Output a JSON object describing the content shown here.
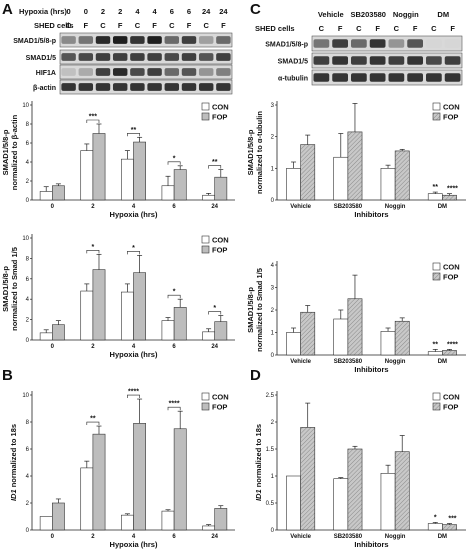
{
  "panel_labels": [
    "A",
    "B",
    "C",
    "D"
  ],
  "blot_left": {
    "header_label": "Hypoxia (hrs)",
    "header_values": [
      "0",
      "0",
      "2",
      "2",
      "4",
      "4",
      "6",
      "6",
      "24",
      "24"
    ],
    "cells_label": "SHED cells",
    "cells_values": [
      "C",
      "F",
      "C",
      "F",
      "C",
      "F",
      "C",
      "F",
      "C",
      "F"
    ],
    "rows": [
      "SMAD1/5/8-p",
      "SMAD1/5",
      "HIF1A",
      "β-actin"
    ]
  },
  "blot_right": {
    "header_values": [
      "Vehicle",
      "SB203580",
      "Noggin",
      "DM"
    ],
    "cells_label": "SHED cells",
    "cells_values": [
      "C",
      "F",
      "C",
      "F",
      "C",
      "F",
      "C",
      "F"
    ],
    "rows": [
      "SMAD1/5/8-p",
      "SMAD1/5",
      "α-tubulin"
    ]
  },
  "legend": {
    "con": "CON",
    "fop": "FOP"
  },
  "colors": {
    "con": "#ffffff",
    "fop": "#bdbdbd",
    "stroke": "#333333"
  },
  "chart_data": [
    {
      "id": "A1",
      "type": "bar",
      "categories": [
        "0",
        "2",
        "4",
        "6",
        "24"
      ],
      "xlabel": "Hypoxia (hrs)",
      "ylabel": [
        "SMAD1/5/8-p",
        "normalized to β-actin"
      ],
      "ylim": [
        0,
        10
      ],
      "yticks": [
        0,
        2,
        4,
        6,
        8,
        10
      ],
      "series": [
        {
          "name": "CON",
          "values": [
            0.9,
            5.2,
            4.3,
            1.5,
            0.5
          ],
          "errors": [
            0.5,
            0.7,
            0.9,
            1.0,
            0.2
          ]
        },
        {
          "name": "FOP",
          "values": [
            1.5,
            7.0,
            6.1,
            3.2,
            2.4
          ],
          "errors": [
            0.2,
            1.0,
            0.5,
            0.4,
            0.8
          ]
        }
      ],
      "significance": [
        {
          "category": 1,
          "label": "***"
        },
        {
          "category": 2,
          "label": "**"
        },
        {
          "category": 3,
          "label": "*"
        },
        {
          "category": 4,
          "label": "**"
        }
      ]
    },
    {
      "id": "A2",
      "type": "bar",
      "categories": [
        "0",
        "2",
        "4",
        "6",
        "24"
      ],
      "xlabel": "Hypoxia (hrs)",
      "ylabel": [
        "SMAD1/5/8-p",
        "normalized to Smad 1/5"
      ],
      "ylim": [
        0,
        10
      ],
      "yticks": [
        0,
        2,
        4,
        6,
        8,
        10
      ],
      "series": [
        {
          "name": "CON",
          "values": [
            0.7,
            4.8,
            4.7,
            1.9,
            0.8
          ],
          "errors": [
            0.3,
            0.7,
            0.8,
            0.3,
            0.3
          ]
        },
        {
          "name": "FOP",
          "values": [
            1.5,
            6.9,
            6.6,
            3.2,
            1.8
          ],
          "errors": [
            0.4,
            1.5,
            1.7,
            0.8,
            0.6
          ]
        }
      ],
      "significance": [
        {
          "category": 1,
          "label": "*"
        },
        {
          "category": 2,
          "label": "*"
        },
        {
          "category": 3,
          "label": "*"
        },
        {
          "category": 4,
          "label": "*"
        }
      ]
    },
    {
      "id": "B",
      "type": "bar",
      "categories": [
        "0",
        "2",
        "4",
        "6",
        "24"
      ],
      "xlabel": "Hypoxia (hrs)",
      "ylabel": [
        "ID1 normalized to 18s"
      ],
      "ylim": [
        0,
        10
      ],
      "yticks": [
        0,
        2,
        4,
        6,
        8,
        10
      ],
      "series": [
        {
          "name": "CON",
          "values": [
            1.0,
            4.6,
            1.1,
            1.4,
            0.3
          ],
          "errors": [
            0.0,
            0.5,
            0.1,
            0.1,
            0.1
          ]
        },
        {
          "name": "FOP",
          "values": [
            2.0,
            7.1,
            7.9,
            7.5,
            1.6
          ],
          "errors": [
            0.3,
            0.6,
            1.8,
            1.3,
            0.2
          ]
        }
      ],
      "significance": [
        {
          "category": 1,
          "label": "**"
        },
        {
          "category": 2,
          "label": "****"
        },
        {
          "category": 3,
          "label": "****"
        }
      ]
    },
    {
      "id": "C1",
      "type": "bar",
      "categories": [
        "Vehicle",
        "SB203580",
        "Noggin",
        "DM"
      ],
      "xlabel": "Inhibitors",
      "ylabel": [
        "SMAD1/5/8-p",
        "normalized to α-tubulin"
      ],
      "ylim": [
        0,
        3
      ],
      "yticks": [
        0,
        1,
        2,
        3
      ],
      "series": [
        {
          "name": "CON",
          "values": [
            1.0,
            1.35,
            1.0,
            0.2
          ],
          "errors": [
            0.2,
            0.75,
            0.1,
            0.05
          ]
        },
        {
          "name": "FOP",
          "values": [
            1.75,
            2.15,
            1.55,
            0.15
          ],
          "errors": [
            0.3,
            0.9,
            0.05,
            0.05
          ]
        }
      ],
      "significance": [
        {
          "category": 3,
          "labels": [
            "**",
            "****"
          ]
        }
      ]
    },
    {
      "id": "C2",
      "type": "bar",
      "categories": [
        "Vehicle",
        "SB203580",
        "Noggin",
        "DM"
      ],
      "xlabel": "Inhibitors",
      "ylabel": [
        "SMAD1/5/8-p",
        "normalized to Smad 1/5"
      ],
      "ylim": [
        0,
        4
      ],
      "yticks": [
        0,
        1,
        2,
        3,
        4
      ],
      "series": [
        {
          "name": "CON",
          "values": [
            1.0,
            1.6,
            1.05,
            0.15
          ],
          "errors": [
            0.2,
            0.4,
            0.15,
            0.1
          ]
        },
        {
          "name": "FOP",
          "values": [
            1.9,
            2.5,
            1.5,
            0.2
          ],
          "errors": [
            0.3,
            1.05,
            0.15,
            0.05
          ]
        }
      ],
      "significance": [
        {
          "category": 3,
          "labels": [
            "**",
            "****"
          ]
        }
      ]
    },
    {
      "id": "D",
      "type": "bar",
      "categories": [
        "Vehicle",
        "SB203580",
        "Noggin",
        "DM"
      ],
      "xlabel": "Inhibitors",
      "ylabel": [
        "ID1 normalized to 18s"
      ],
      "ylim": [
        0,
        2.5
      ],
      "yticks": [
        0,
        0.5,
        1,
        1.5,
        2,
        2.5
      ],
      "series": [
        {
          "name": "CON",
          "values": [
            1.0,
            0.95,
            1.05,
            0.12
          ],
          "errors": [
            0.0,
            0.02,
            0.15,
            0.02
          ]
        },
        {
          "name": "FOP",
          "values": [
            1.9,
            1.5,
            1.45,
            0.1
          ],
          "errors": [
            0.45,
            0.05,
            0.3,
            0.02
          ]
        }
      ],
      "significance": [
        {
          "category": 3,
          "labels": [
            "*",
            "***"
          ]
        }
      ]
    }
  ]
}
